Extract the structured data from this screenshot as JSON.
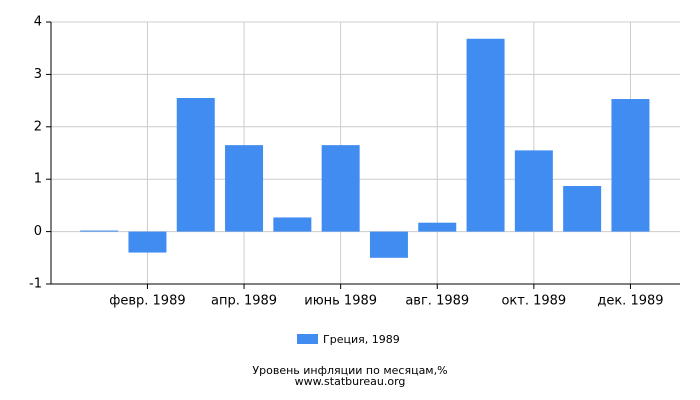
{
  "chart_data": {
    "type": "bar",
    "categories": [
      null,
      "февр. 1989",
      null,
      "апр. 1989",
      null,
      "июнь 1989",
      null,
      "авг. 1989",
      null,
      "окт. 1989",
      null,
      "дек. 1989"
    ],
    "series": [
      {
        "name": "Греция, 1989",
        "color": "#418cf0",
        "values": [
          0.02,
          -0.4,
          2.55,
          1.65,
          0.27,
          1.65,
          -0.5,
          0.17,
          3.68,
          1.55,
          0.87,
          2.53
        ]
      }
    ],
    "ylim": [
      -1,
      4
    ],
    "yticks": [
      -1,
      0,
      1,
      2,
      3,
      4
    ],
    "grid": true,
    "legend": "bottom",
    "title": "Уровень инфляции по месяцам,%",
    "subtitle": "www.statbureau.org"
  }
}
